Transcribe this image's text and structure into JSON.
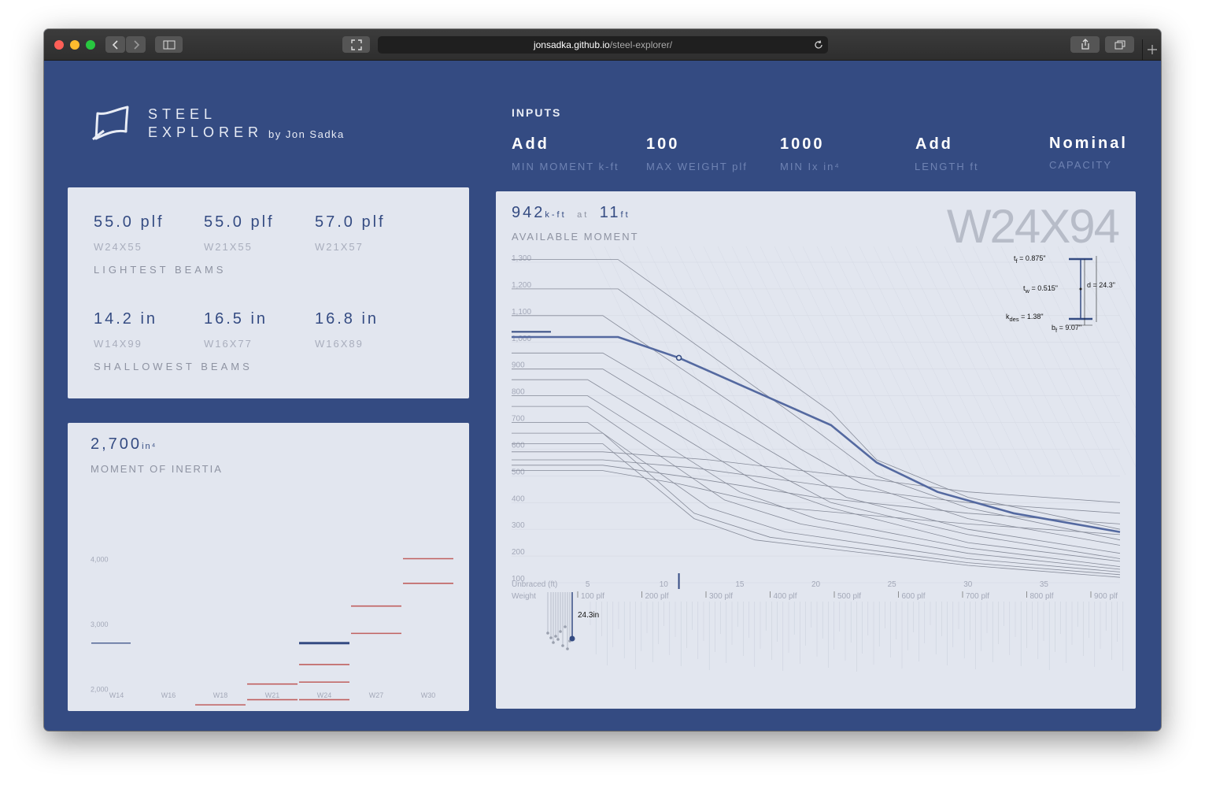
{
  "browser": {
    "url_host": "jonsadka.github.io",
    "url_path": "/steel-explorer/"
  },
  "header": {
    "title_line1": "STEEL",
    "title_line2": "EXPLORER",
    "byline": "by Jon Sadka"
  },
  "inputs": {
    "title": "INPUTS",
    "fields": [
      {
        "value": "Add",
        "label": "MIN MOMENT",
        "unit": "k-ft"
      },
      {
        "value": "100",
        "label": "MAX WEIGHT",
        "unit": "plf"
      },
      {
        "value": "1000",
        "label": "MIN Ix",
        "unit": "in⁴"
      },
      {
        "value": "Add",
        "label": "LENGTH",
        "unit": "ft"
      },
      {
        "value": "Nominal",
        "label": "CAPACITY",
        "unit": ""
      }
    ]
  },
  "lightest": {
    "caption": "LIGHTEST BEAMS",
    "items": [
      {
        "value": "55.0 plf",
        "name": "W24X55"
      },
      {
        "value": "55.0 plf",
        "name": "W21X55"
      },
      {
        "value": "57.0 plf",
        "name": "W21X57"
      }
    ]
  },
  "shallowest": {
    "caption": "SHALLOWEST BEAMS",
    "items": [
      {
        "value": "14.2 in",
        "name": "W14X99"
      },
      {
        "value": "16.5 in",
        "name": "W16X77"
      },
      {
        "value": "16.8 in",
        "name": "W16X89"
      }
    ]
  },
  "inertia": {
    "value": "2,700",
    "unit": "in⁴",
    "caption": "MOMENT OF INERTIA",
    "chart_data": {
      "type": "scatter",
      "y_ticks": [
        "4,000",
        "3,000",
        "2,000"
      ],
      "categories": [
        "W14",
        "W16",
        "W18",
        "W21",
        "W24",
        "W27",
        "W30"
      ],
      "ylim": [
        1000,
        4000
      ],
      "highlight": {
        "category": "W24",
        "value": 2700
      },
      "selection": {
        "value": 2700
      },
      "series": [
        {
          "category": "W14",
          "values": [
            1110
          ]
        },
        {
          "category": "W16",
          "values": [
            1110,
            1300,
            1500
          ]
        },
        {
          "category": "W18",
          "values": [
            1150,
            1250,
            1330,
            1530,
            1750
          ]
        },
        {
          "category": "W21",
          "values": [
            1140,
            1170,
            1330,
            1480,
            1600,
            1830,
            2070
          ]
        },
        {
          "category": "W24",
          "values": [
            1550,
            1830,
            2100,
            2370,
            2700
          ]
        },
        {
          "category": "W27",
          "values": [
            2850,
            3270
          ]
        },
        {
          "category": "W30",
          "values": [
            3620,
            4000
          ]
        }
      ],
      "color_other": "#c0605f",
      "color_other_light": "#d9a9aa",
      "color_selected": "#344b82"
    }
  },
  "moment": {
    "value": "942",
    "value_unit": "k-ft",
    "at": "at",
    "length": "11",
    "length_unit": "ft",
    "caption": "AVAILABLE MOMENT",
    "selected_beam": "W24X94",
    "section": {
      "tf": "0.875\"",
      "tw": "0.515\"",
      "kdes": "1.38\"",
      "bf": "9.07\"",
      "d": "24.3\""
    },
    "chart_data": {
      "type": "line",
      "xlabel": "Unbraced (ft)",
      "x_ticks": [
        5,
        10,
        15,
        20,
        25,
        30,
        35
      ],
      "y_ticks": [
        1300,
        1200,
        1100,
        1000,
        900,
        800,
        700,
        600,
        500,
        400,
        300,
        200,
        100
      ],
      "xlim": [
        0,
        40
      ],
      "ylim": [
        100,
        1300
      ],
      "marker": {
        "x": 11,
        "y": 942
      },
      "series": [
        {
          "name": "W24X94",
          "selected": true,
          "x": [
            0,
            7,
            11,
            21,
            24,
            28,
            33,
            40
          ],
          "y": [
            1020,
            1020,
            942,
            690,
            550,
            440,
            360,
            290
          ]
        }
      ],
      "background_series": [
        {
          "x": [
            0,
            7,
            21,
            24,
            30,
            40
          ],
          "y": [
            1310,
            1310,
            740,
            560,
            420,
            300
          ]
        },
        {
          "x": [
            0,
            7,
            20,
            24,
            30,
            40
          ],
          "y": [
            1200,
            1200,
            670,
            500,
            380,
            260
          ]
        },
        {
          "x": [
            0,
            6,
            19,
            23,
            30,
            40
          ],
          "y": [
            1100,
            1100,
            600,
            470,
            340,
            240
          ]
        },
        {
          "x": [
            0,
            6,
            18,
            22,
            30,
            40
          ],
          "y": [
            960,
            960,
            560,
            420,
            300,
            210
          ]
        },
        {
          "x": [
            0,
            6,
            17,
            21,
            30,
            40
          ],
          "y": [
            900,
            900,
            520,
            400,
            280,
            190
          ]
        },
        {
          "x": [
            0,
            5,
            16,
            21,
            30,
            40
          ],
          "y": [
            860,
            860,
            480,
            380,
            250,
            180
          ]
        },
        {
          "x": [
            0,
            5,
            15,
            20,
            30,
            40
          ],
          "y": [
            800,
            800,
            440,
            340,
            230,
            160
          ]
        },
        {
          "x": [
            0,
            5,
            14,
            19,
            30,
            40
          ],
          "y": [
            760,
            760,
            410,
            320,
            210,
            150
          ]
        },
        {
          "x": [
            0,
            5,
            13,
            18,
            30,
            40
          ],
          "y": [
            700,
            700,
            380,
            290,
            190,
            140
          ]
        },
        {
          "x": [
            0,
            6,
            12,
            17,
            30,
            40
          ],
          "y": [
            660,
            660,
            360,
            270,
            175,
            130
          ]
        },
        {
          "x": [
            0,
            6,
            12,
            16,
            30,
            40
          ],
          "y": [
            620,
            620,
            340,
            260,
            165,
            120
          ]
        },
        {
          "x": [
            0,
            6,
            13,
            22,
            30,
            40
          ],
          "y": [
            590,
            590,
            560,
            500,
            440,
            400
          ]
        },
        {
          "x": [
            0,
            6,
            12,
            21,
            30,
            40
          ],
          "y": [
            560,
            560,
            530,
            460,
            400,
            360
          ]
        },
        {
          "x": [
            0,
            6,
            11,
            20,
            30,
            40
          ],
          "y": [
            540,
            540,
            500,
            420,
            360,
            320
          ]
        },
        {
          "x": [
            0,
            6,
            11,
            18,
            30,
            40
          ],
          "y": [
            520,
            520,
            470,
            380,
            320,
            280
          ]
        }
      ],
      "weight_axis": {
        "label": "Weight",
        "ticks": [
          "100 plf",
          "200 plf",
          "300 plf",
          "400 plf",
          "500 plf",
          "600 plf",
          "700 plf",
          "800 plf",
          "900 plf"
        ],
        "depth_label": "24.3in"
      }
    }
  }
}
